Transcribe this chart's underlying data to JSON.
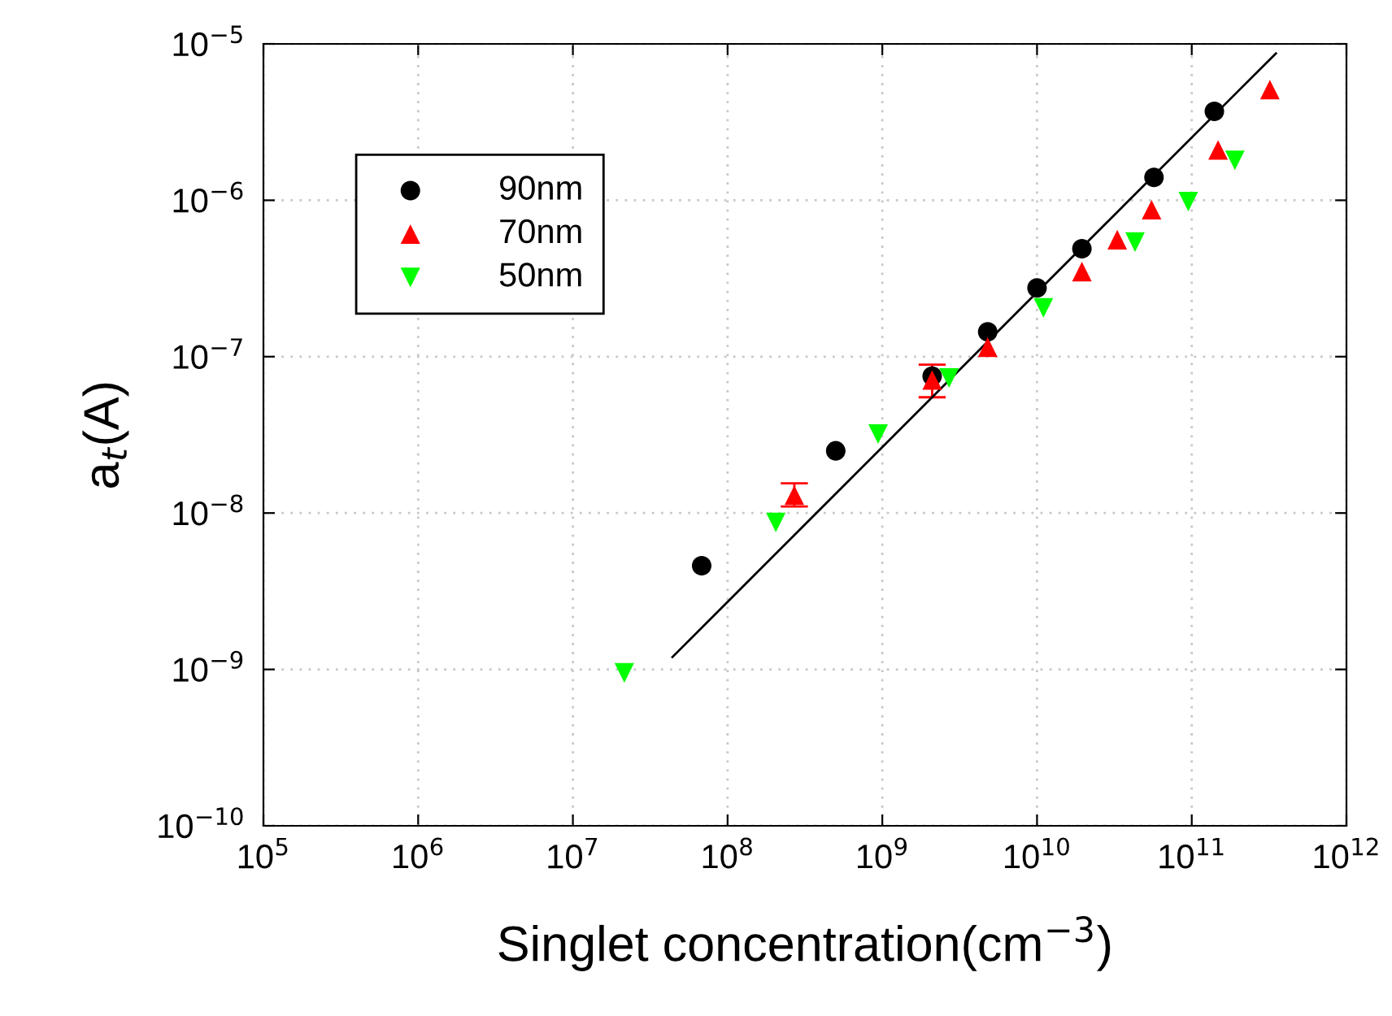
{
  "chart_data": {
    "type": "scatter",
    "xlabel": "Singlet concentration(cm$^{−3}$)",
    "ylabel": "a$_{t}$(A)",
    "log": "xy",
    "grid": true,
    "legend": "top left",
    "xlim": [
      100000.0,
      1000000000000.0
    ],
    "ylim": [
      1e-10,
      1e-05
    ],
    "xticks": [
      {
        "value": 100000.0,
        "label": "10$^{5}$"
      },
      {
        "value": 1000000.0,
        "label": "10$^{6}$"
      },
      {
        "value": 10000000.0,
        "label": "10$^{7}$"
      },
      {
        "value": 100000000.0,
        "label": "10$^{8}$"
      },
      {
        "value": 1000000000.0,
        "label": "10$^{9}$"
      },
      {
        "value": 10000000000.0,
        "label": "10$^{10}$"
      },
      {
        "value": 100000000000.0,
        "label": "10$^{11}$"
      },
      {
        "value": 1000000000000.0,
        "label": "10$^{12}$"
      }
    ],
    "yticks": [
      {
        "value": 1e-10,
        "label": "10$^{−10}$"
      },
      {
        "value": 1e-09,
        "label": "10$^{−9}$"
      },
      {
        "value": 1e-08,
        "label": "10$^{−8}$"
      },
      {
        "value": 1e-07,
        "label": "10$^{−7}$"
      },
      {
        "value": 1e-06,
        "label": "10$^{−6}$"
      },
      {
        "value": 1e-05,
        "label": "10$^{−5}$"
      }
    ],
    "series": [
      {
        "name": "90nm",
        "color": "#000000",
        "marker": "circle",
        "x": [
          68000000.0,
          500000000.0,
          2100000000.0,
          4800000000.0,
          10000000000.0,
          19500000000.0,
          57000000000.0,
          140000000000.0
        ],
        "values": [
          4.6e-09,
          2.5e-08,
          7.5e-08,
          1.44e-07,
          2.75e-07,
          4.9e-07,
          1.4e-06,
          3.7e-06
        ]
      },
      {
        "name": "70nm",
        "color": "#ff0000",
        "marker": "triangle",
        "x": [
          270000000.0,
          2100000000.0,
          4800000000.0,
          19500000000.0,
          33000000000.0,
          55000000000.0,
          148000000000.0,
          320000000000.0
        ],
        "values": [
          1.3e-08,
          7.1e-08,
          1.15e-07,
          3.5e-07,
          5.6e-07,
          8.7e-07,
          2.1e-06,
          5.1e-06
        ],
        "errors": [
          [
            1.1e-08,
            1.55e-08
          ],
          [
            5.5e-08,
            8.9e-08
          ],
          null,
          null,
          null,
          null,
          null,
          null
        ]
      },
      {
        "name": "50nm",
        "color": "#00ff00",
        "marker": "triangle_down",
        "x": [
          21500000.0,
          205000000.0,
          940000000.0,
          2700000000.0,
          11000000000.0,
          43000000000.0,
          95000000000.0,
          190000000000.0
        ],
        "values": [
          9.5e-10,
          8.7e-09,
          3.2e-08,
          7.3e-08,
          2.05e-07,
          5.4e-07,
          9.8e-07,
          1.8e-06
        ]
      },
      {
        "type": "line",
        "color": "#000000",
        "line_style": "solid",
        "x": [
          44000000.0,
          350000000000.0
        ],
        "values": [
          1.2e-09,
          8.7e-06
        ]
      }
    ]
  }
}
